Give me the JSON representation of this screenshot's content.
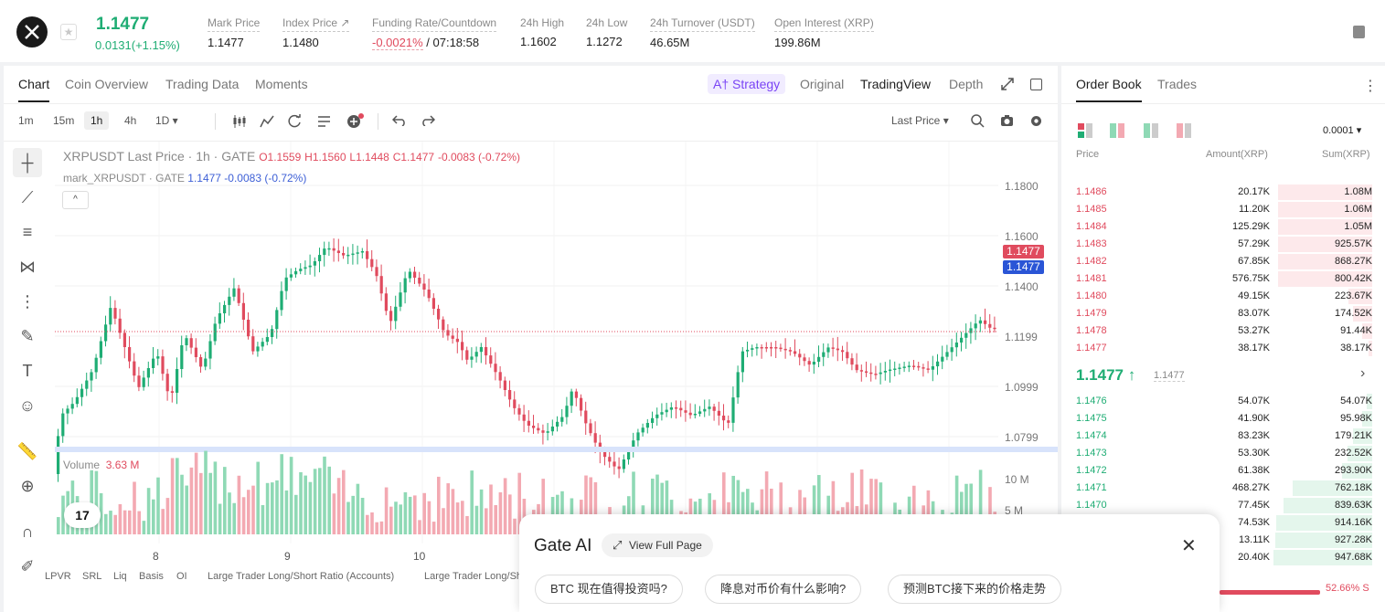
{
  "header": {
    "last_price": "1.1477",
    "change": "0.0131(+1.15%)",
    "stats": [
      {
        "label": "Mark Price",
        "value": "1.1477"
      },
      {
        "label": "Index Price ↗",
        "value": "1.1480"
      },
      {
        "label": "Funding Rate/Countdown",
        "value_neg": "-0.0021%",
        "value": " / 07:18:58"
      },
      {
        "label": "24h High",
        "value": "1.1602"
      },
      {
        "label": "24h Low",
        "value": "1.1272"
      },
      {
        "label": "24h Turnover (USDT)",
        "value": "46.65M"
      },
      {
        "label": "Open Interest (XRP)",
        "value": "199.86M"
      }
    ]
  },
  "chart_tabs": [
    "Chart",
    "Coin Overview",
    "Trading Data",
    "Moments"
  ],
  "view_tabs": {
    "strategy": "A† Strategy",
    "original": "Original",
    "tradingview": "TradingView",
    "depth": "Depth"
  },
  "timeframes": [
    "1m",
    "15m",
    "1h",
    "4h",
    "1D ▾"
  ],
  "last_price_select": "Last Price ▾",
  "legend": {
    "main": "XRPUSDT Last Price · 1h · GATE",
    "o": "O1.1559",
    "h": "H1.1560",
    "l": "L1.1448",
    "c": "C1.1477",
    "chg": "-0.0083 (-0.72%)",
    "mark": "mark_XRPUSDT · GATE",
    "mark_vals": "1.1477 -0.0083 (-0.72%)"
  },
  "volume_label": "Volume",
  "volume_value": "3.63 M",
  "chart_data": {
    "type": "candlestick",
    "yticks": [
      "1.1800",
      "1.1600",
      "1.1400",
      "1.1199",
      "1.0999",
      "1.0799"
    ],
    "xticks": [
      "8",
      "9",
      "10"
    ],
    "vol_ticks": [
      "10 M",
      "5 M"
    ],
    "price_tags": [
      "1.1477",
      "1.1477"
    ]
  },
  "bottom_indicators": [
    "LPVR",
    "SRL",
    "Liq",
    "Basis",
    "OI",
    "Large Trader Long/Short Ratio (Accounts)",
    "Large Trader Long/Sh"
  ],
  "ai": {
    "title": "Gate AI",
    "view_full": "View Full Page",
    "chips": [
      "BTC 现在值得投资吗?",
      "降息对币价有什么影响?",
      "预测BTC接下来的价格走势"
    ]
  },
  "orderbook": {
    "tabs": [
      "Order Book",
      "Trades"
    ],
    "precision": "0.0001 ▾",
    "headers": [
      "Price",
      "Amount(XRP)",
      "Sum(XRP)"
    ],
    "asks": [
      {
        "p": "1.1486",
        "a": "20.17K",
        "s": "1.08M",
        "w": 0.95
      },
      {
        "p": "1.1485",
        "a": "11.20K",
        "s": "1.06M",
        "w": 0.95
      },
      {
        "p": "1.1484",
        "a": "125.29K",
        "s": "1.05M",
        "w": 0.95
      },
      {
        "p": "1.1483",
        "a": "57.29K",
        "s": "925.57K",
        "w": 0.95
      },
      {
        "p": "1.1482",
        "a": "67.85K",
        "s": "868.27K",
        "w": 0.95
      },
      {
        "p": "1.1481",
        "a": "576.75K",
        "s": "800.42K",
        "w": 0.95
      },
      {
        "p": "1.1480",
        "a": "49.15K",
        "s": "223.67K",
        "w": 0.24
      },
      {
        "p": "1.1479",
        "a": "83.07K",
        "s": "174.52K",
        "w": 0.19
      },
      {
        "p": "1.1478",
        "a": "53.27K",
        "s": "91.44K",
        "w": 0.1
      },
      {
        "p": "1.1477",
        "a": "38.17K",
        "s": "38.17K",
        "w": 0.04
      }
    ],
    "mid": "1.1477 ↑",
    "mid_ref": "1.1477",
    "bids": [
      {
        "p": "1.1476",
        "a": "54.07K",
        "s": "54.07K",
        "w": 0.06
      },
      {
        "p": "1.1475",
        "a": "41.90K",
        "s": "95.98K",
        "w": 0.1
      },
      {
        "p": "1.1474",
        "a": "83.23K",
        "s": "179.21K",
        "w": 0.19
      },
      {
        "p": "1.1473",
        "a": "53.30K",
        "s": "232.52K",
        "w": 0.25
      },
      {
        "p": "1.1472",
        "a": "61.38K",
        "s": "293.90K",
        "w": 0.31
      },
      {
        "p": "1.1471",
        "a": "468.27K",
        "s": "762.18K",
        "w": 0.81
      },
      {
        "p": "1.1470",
        "a": "77.45K",
        "s": "839.63K",
        "w": 0.9
      },
      {
        "p": "",
        "a": "74.53K",
        "s": "914.16K",
        "w": 0.97
      },
      {
        "p": "",
        "a": "13.11K",
        "s": "927.28K",
        "w": 0.98
      },
      {
        "p": "",
        "a": "20.40K",
        "s": "947.68K",
        "w": 1.0
      }
    ],
    "ratio": "52.66% S"
  }
}
